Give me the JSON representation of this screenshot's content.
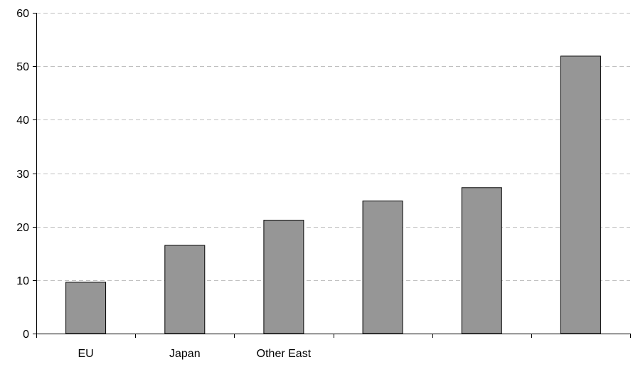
{
  "chart_data": {
    "type": "bar",
    "categories": [
      "EU",
      "Japan",
      "Other East",
      "",
      "",
      ""
    ],
    "values": [
      9.6,
      16.5,
      21.2,
      24.8,
      27.3,
      51.9
    ],
    "title": "",
    "xlabel": "",
    "ylabel": "",
    "ylim": [
      0,
      60
    ],
    "yticks": [
      0,
      10,
      20,
      30,
      40,
      50,
      60
    ],
    "grid": true,
    "legend": "none",
    "colors": {
      "bar_fill": "#969696",
      "bar_stroke": "#000000",
      "grid": "#c0c0c0",
      "axis": "#000000"
    }
  }
}
